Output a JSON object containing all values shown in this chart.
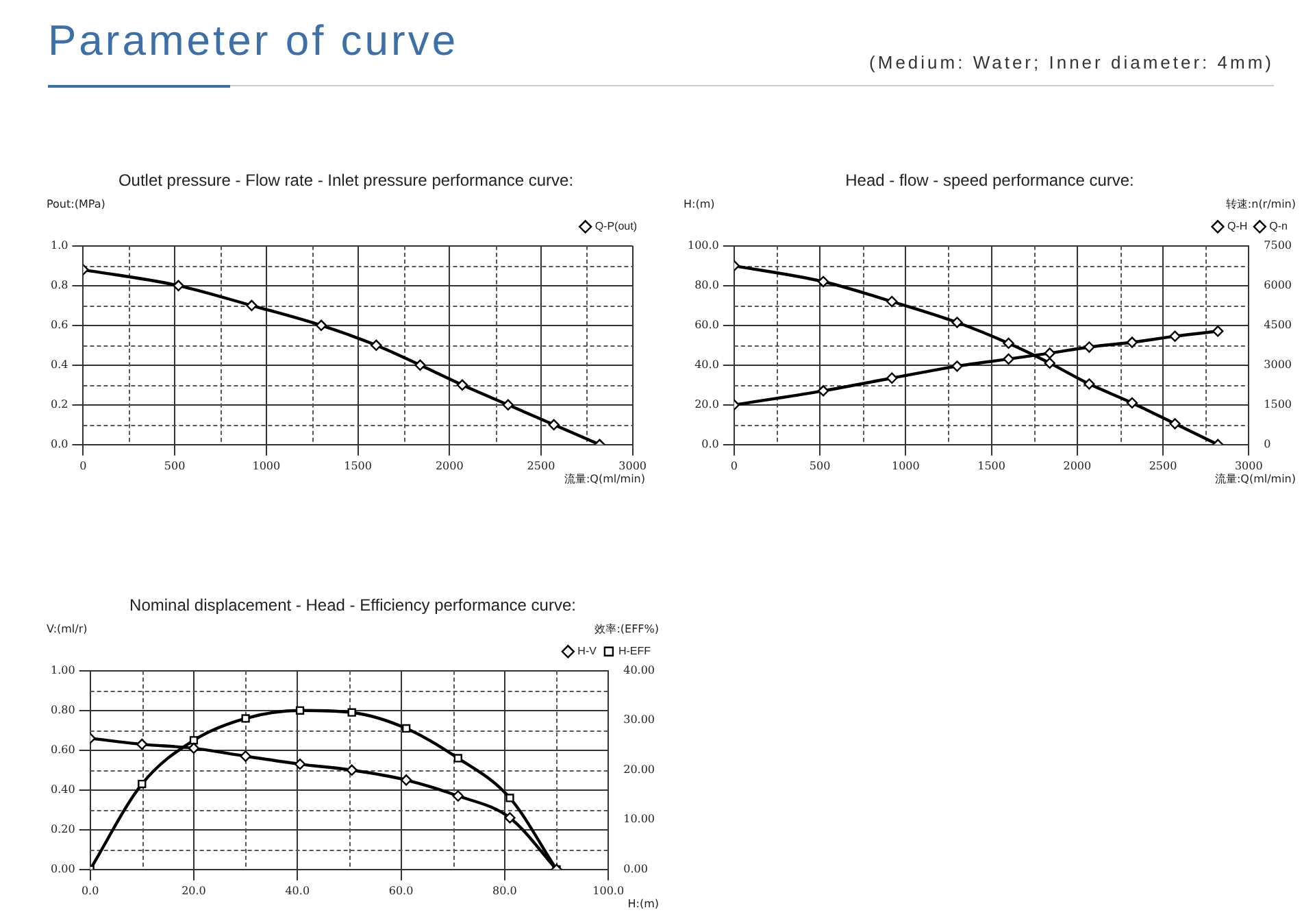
{
  "chart_data": [
    {
      "type": "other",
      "title": "Parameter of curve",
      "subtitle": "(Medium: Water; Inner diameter: 4mm)"
    },
    {
      "type": "line",
      "title": "Outlet pressure - Flow rate - Inlet pressure performance curve:",
      "xlabel": "流量:Q(ml/min)",
      "ylabel": "Pout:(MPa)",
      "series": [
        {
          "name": "Q-P(out)",
          "color": "#000000",
          "x": [
            0,
            520,
            920,
            1300,
            1600,
            1840,
            2070,
            2320,
            2570,
            2820
          ],
          "values": [
            0.88,
            0.8,
            0.7,
            0.6,
            0.5,
            0.4,
            0.3,
            0.2,
            0.1,
            0.0
          ]
        }
      ],
      "xlim": [
        0,
        3000
      ],
      "xticks": [
        0,
        {
          "value": 250,
          "label": null
        },
        500,
        {
          "value": 750,
          "label": null
        },
        1000,
        {
          "value": 1250,
          "label": null
        },
        1500,
        {
          "value": 1750,
          "label": null
        },
        2000,
        {
          "value": 2250,
          "label": null
        },
        2500,
        {
          "value": 2750,
          "label": null
        },
        3000
      ],
      "ylim": [
        0,
        1
      ],
      "yticks": [
        {
          "value": 0,
          "label": "0.0"
        },
        {
          "value": 0.1,
          "label": null
        },
        {
          "value": 0.2,
          "label": "0.2"
        },
        {
          "value": 0.3,
          "label": null
        },
        {
          "value": 0.4,
          "label": "0.4"
        },
        {
          "value": 0.5,
          "label": null
        },
        {
          "value": 0.6,
          "label": "0.6"
        },
        {
          "value": 0.7,
          "label": null
        },
        {
          "value": 0.8,
          "label": "0.8"
        },
        {
          "value": 0.9,
          "label": null
        },
        {
          "value": 1,
          "label": "1.0"
        }
      ],
      "grid": true,
      "legend": "top right",
      "marker": "diamond"
    },
    {
      "type": "line",
      "title": "Head - flow - speed performance curve:",
      "xlabel": "流量:Q(ml/min)",
      "ylabel": "H:(m)",
      "y2label": "转速:n(r/min)",
      "series": [
        {
          "name": "Q-H",
          "color": "#000000",
          "x": [
            0,
            520,
            920,
            1300,
            1600,
            1840,
            2070,
            2320,
            2570,
            2820
          ],
          "values": [
            90,
            82,
            72,
            61.5,
            51,
            41,
            30.5,
            21,
            10.5,
            0
          ]
        },
        {
          "name": "Q-n",
          "color": "#000000",
          "axis": "y2",
          "x": [
            0,
            520,
            920,
            1300,
            1600,
            1840,
            2070,
            2320,
            2570,
            2820
          ],
          "values": [
            1500,
            2030,
            2510,
            2960,
            3230,
            3450,
            3680,
            3860,
            4090,
            4280
          ]
        }
      ],
      "xlim": [
        0,
        3000
      ],
      "xticks": [
        0,
        {
          "value": 250,
          "label": null
        },
        500,
        {
          "value": 750,
          "label": null
        },
        1000,
        {
          "value": 1250,
          "label": null
        },
        1500,
        {
          "value": 1750,
          "label": null
        },
        2000,
        {
          "value": 2250,
          "label": null
        },
        2500,
        {
          "value": 2750,
          "label": null
        },
        3000
      ],
      "ylim": [
        0,
        100
      ],
      "yticks": [
        {
          "value": 0,
          "label": "0.0"
        },
        {
          "value": 10,
          "label": null
        },
        {
          "value": 20,
          "label": "20.0"
        },
        {
          "value": 30,
          "label": null
        },
        {
          "value": 40,
          "label": "40.0"
        },
        {
          "value": 50,
          "label": null
        },
        {
          "value": 60,
          "label": "60.0"
        },
        {
          "value": 70,
          "label": null
        },
        {
          "value": 80,
          "label": "80.0"
        },
        {
          "value": 90,
          "label": null
        },
        {
          "value": 100,
          "label": "100.0"
        }
      ],
      "y2lim": [
        0,
        7500
      ],
      "y2ticks": [
        0,
        1500,
        3000,
        4500,
        6000,
        7500
      ],
      "grid": true,
      "legend": "top right",
      "marker": "diamond"
    },
    {
      "type": "line",
      "title": "Nominal displacement - Head - Efficiency performance curve:",
      "xlabel": "H:(m)",
      "ylabel": "V:(ml/r)",
      "y2label": "效率:(EFF%)",
      "series": [
        {
          "name": "H-V",
          "color": "#000000",
          "x": [
            0,
            10,
            20,
            30,
            40.5,
            50.5,
            61,
            71,
            81,
            90
          ],
          "values": [
            0.66,
            0.63,
            0.61,
            0.57,
            0.53,
            0.5,
            0.45,
            0.37,
            0.26,
            0.0
          ]
        },
        {
          "name": "H-EFF",
          "color": "#000000",
          "axis": "y2",
          "marker": "square",
          "x": [
            0,
            10,
            20,
            30,
            40.5,
            50.5,
            61,
            71,
            81,
            90
          ],
          "values": [
            0,
            17.2,
            26,
            30.4,
            32,
            31.6,
            28.4,
            22.4,
            14.4,
            0
          ]
        }
      ],
      "xlim": [
        0,
        100
      ],
      "xticks": [
        {
          "value": 0,
          "label": "0.0"
        },
        {
          "value": 10,
          "label": null
        },
        {
          "value": 20,
          "label": "20.0"
        },
        {
          "value": 30,
          "label": null
        },
        {
          "value": 40,
          "label": "40.0"
        },
        {
          "value": 50,
          "label": null
        },
        {
          "value": 60,
          "label": "60.0"
        },
        {
          "value": 70,
          "label": null
        },
        {
          "value": 80,
          "label": "80.0"
        },
        {
          "value": 90,
          "label": null
        },
        {
          "value": 100,
          "label": "100.0"
        }
      ],
      "ylim": [
        0,
        1
      ],
      "yticks": [
        {
          "value": 0,
          "label": "0.00"
        },
        {
          "value": 0.1,
          "label": null
        },
        {
          "value": 0.2,
          "label": "0.20"
        },
        {
          "value": 0.3,
          "label": null
        },
        {
          "value": 0.4,
          "label": "0.40"
        },
        {
          "value": 0.5,
          "label": null
        },
        {
          "value": 0.6,
          "label": "0.60"
        },
        {
          "value": 0.7,
          "label": null
        },
        {
          "value": 0.8,
          "label": "0.80"
        },
        {
          "value": 0.9,
          "label": null
        },
        {
          "value": 1,
          "label": "1.00"
        }
      ],
      "y2lim": [
        0,
        40
      ],
      "y2ticks": [
        {
          "value": 0,
          "label": "0.00"
        },
        {
          "value": 10,
          "label": "10.00"
        },
        {
          "value": 20,
          "label": "20.00"
        },
        {
          "value": 30,
          "label": "30.00"
        },
        {
          "value": 40,
          "label": "40.00"
        }
      ],
      "grid": true,
      "legend": "top right",
      "marker": "diamond"
    }
  ]
}
